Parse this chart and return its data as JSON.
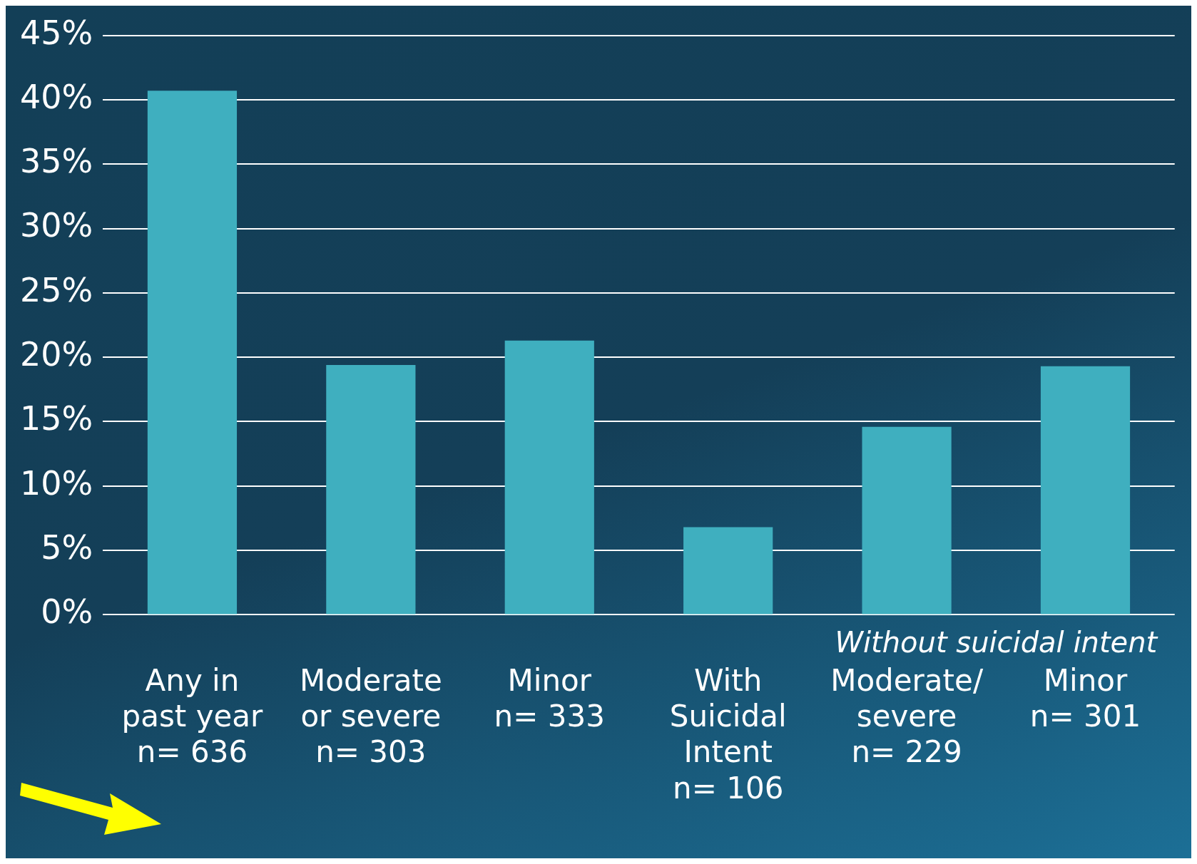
{
  "chart_data": {
    "type": "bar",
    "categories": [
      "Any in\npast year\nn= 636",
      "Moderate\nor severe\nn= 303",
      "Minor\nn= 333",
      "With\nSuicidal\nIntent\nn= 106",
      "Moderate/\nsevere\nn= 229",
      "Minor\nn= 301"
    ],
    "values": [
      40.7,
      19.4,
      21.3,
      6.8,
      14.6,
      19.3
    ],
    "color": "#3fafbf",
    "ylim": [
      0,
      45
    ],
    "yticks": [
      {
        "value": 0,
        "label": "0%"
      },
      {
        "value": 5,
        "label": "5%"
      },
      {
        "value": 10,
        "label": "10%"
      },
      {
        "value": 15,
        "label": "15%"
      },
      {
        "value": 20,
        "label": "20%"
      },
      {
        "value": 25,
        "label": "25%"
      },
      {
        "value": 30,
        "label": "30%"
      },
      {
        "value": 35,
        "label": "35%"
      },
      {
        "value": 40,
        "label": "40%"
      },
      {
        "value": 45,
        "label": "45%"
      }
    ],
    "grid": "y",
    "legend": false,
    "annotations": [
      "Without suicidal intent"
    ]
  }
}
